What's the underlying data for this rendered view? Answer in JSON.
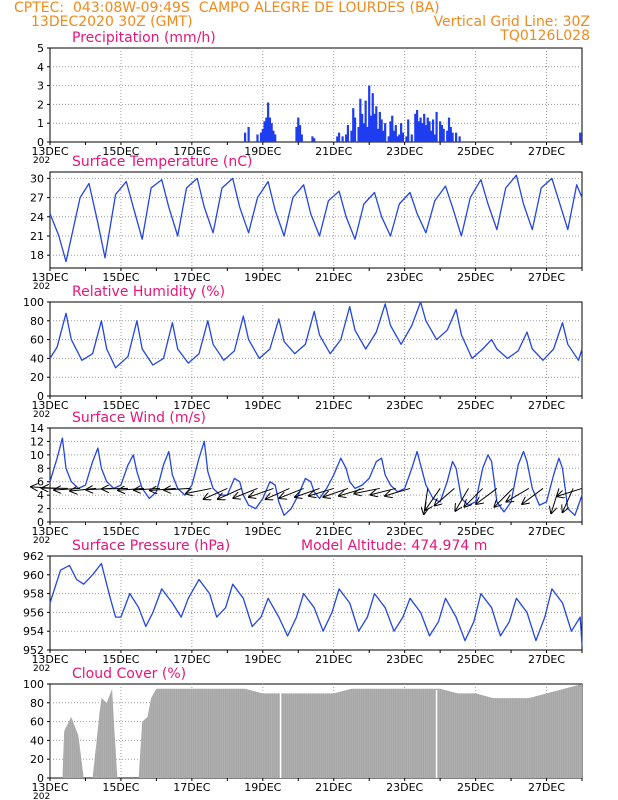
{
  "header": {
    "line1": "CPTEC:  043:08W-09:49S  CAMPO ALEGRE DE LOURDES (BA)",
    "line2_left": "13DEC2020 30Z (GMT)",
    "line2_right": "Vertical Grid Line: 30Z",
    "line3_right": "TQ0126L028"
  },
  "colors": {
    "header": "#f08a1c",
    "title": "#e8157a",
    "series": "#2346e0",
    "bars": "#1e3cf0",
    "cloud": "#a6a6a6",
    "arrows": "#000000",
    "grid": "#9a9a9a"
  },
  "x_axis": {
    "ticks": [
      {
        "day": 13,
        "label": "13DEC"
      },
      {
        "day": 15,
        "label": "15DEC"
      },
      {
        "day": 17,
        "label": "17DEC"
      },
      {
        "day": 19,
        "label": "19DEC"
      },
      {
        "day": 21,
        "label": "21DEC"
      },
      {
        "day": 23,
        "label": "23DEC"
      },
      {
        "day": 25,
        "label": "25DEC"
      },
      {
        "day": 27,
        "label": "27DEC"
      }
    ],
    "range_days": [
      13,
      28
    ],
    "cut_label": "202"
  },
  "chart_data": [
    {
      "id": "precip",
      "type": "bar",
      "title": "Precipitation (mm/h)",
      "ylim": [
        0,
        5
      ],
      "yticks": [
        0,
        1,
        2,
        3,
        4,
        5
      ],
      "x_unit": "day of December 2020",
      "x": [
        18.5,
        18.6,
        18.85,
        18.95,
        19.0,
        19.05,
        19.1,
        19.15,
        19.2,
        19.25,
        19.3,
        19.35,
        19.95,
        20.0,
        20.05,
        20.1,
        20.4,
        20.45,
        21.1,
        21.15,
        21.25,
        21.35,
        21.4,
        21.5,
        21.55,
        21.6,
        21.7,
        21.75,
        21.8,
        21.85,
        21.9,
        21.95,
        22.0,
        22.05,
        22.1,
        22.15,
        22.2,
        22.25,
        22.3,
        22.35,
        22.4,
        22.45,
        22.55,
        22.6,
        22.65,
        22.7,
        22.75,
        22.8,
        22.85,
        22.9,
        22.95,
        23.05,
        23.1,
        23.2,
        23.3,
        23.35,
        23.4,
        23.45,
        23.5,
        23.55,
        23.6,
        23.65,
        23.7,
        23.75,
        23.8,
        23.85,
        23.9,
        24.0,
        24.05,
        24.1,
        24.2,
        24.25,
        24.3,
        24.35,
        24.45,
        24.55,
        27.95
      ],
      "values": [
        0.5,
        0.8,
        0.4,
        0.5,
        0.7,
        1.1,
        1.3,
        2.1,
        1.3,
        1.0,
        0.6,
        0.4,
        0.8,
        1.3,
        0.9,
        0.4,
        0.3,
        0.2,
        0.3,
        0.5,
        0.3,
        0.4,
        0.9,
        0.6,
        1.8,
        1.3,
        0.8,
        2.3,
        1.5,
        1.0,
        2.2,
        0.8,
        3.0,
        1.4,
        2.6,
        1.5,
        1.9,
        0.7,
        1.6,
        1.2,
        0.6,
        1.0,
        0.3,
        1.1,
        1.4,
        0.6,
        0.9,
        0.3,
        0.4,
        1.0,
        0.5,
        0.3,
        1.2,
        0.4,
        1.5,
        1.7,
        1.1,
        1.3,
        1.0,
        1.5,
        0.9,
        1.3,
        1.1,
        0.6,
        1.2,
        0.4,
        1.6,
        1.1,
        0.9,
        0.7,
        0.6,
        1.3,
        0.8,
        0.5,
        0.5,
        0.3,
        0.5
      ]
    },
    {
      "id": "temp",
      "type": "line",
      "title": "Surface Temperature (nC)",
      "ylim": [
        16,
        31
      ],
      "yticks": [
        18,
        21,
        24,
        27,
        30
      ],
      "series": [
        {
          "x": [
            13.0,
            13.25,
            13.45,
            13.85,
            14.1,
            14.35,
            14.55,
            14.85,
            15.15,
            15.35,
            15.6,
            15.85,
            16.15,
            16.35,
            16.6,
            16.85,
            17.15,
            17.35,
            17.6,
            17.85,
            18.15,
            18.35,
            18.6,
            18.85,
            19.15,
            19.35,
            19.6,
            19.85,
            20.15,
            20.35,
            20.6,
            20.85,
            21.15,
            21.35,
            21.6,
            21.85,
            22.15,
            22.35,
            22.6,
            22.85,
            23.15,
            23.35,
            23.6,
            23.85,
            24.15,
            24.35,
            24.6,
            24.85,
            25.15,
            25.35,
            25.6,
            25.85,
            26.15,
            26.35,
            26.6,
            26.85,
            27.15,
            27.35,
            27.6,
            27.85,
            28.0
          ],
          "y": [
            24.5,
            21.0,
            17.0,
            27.0,
            29.2,
            23.0,
            17.6,
            27.5,
            29.5,
            25.5,
            20.5,
            28.5,
            29.8,
            25.5,
            21.0,
            28.5,
            30.0,
            25.5,
            21.5,
            28.5,
            30.0,
            25.5,
            21.5,
            27.0,
            29.5,
            25.0,
            21.0,
            27.0,
            29.0,
            24.5,
            21.0,
            26.5,
            28.0,
            24.0,
            20.5,
            26.0,
            27.8,
            24.0,
            21.0,
            26.0,
            27.8,
            24.5,
            21.5,
            26.5,
            28.8,
            25.5,
            21.0,
            27.0,
            29.8,
            26.0,
            22.0,
            28.5,
            30.5,
            26.0,
            22.0,
            28.5,
            30.0,
            26.5,
            22.0,
            29.0,
            27.0
          ]
        }
      ]
    },
    {
      "id": "rh",
      "type": "line",
      "title": "Relative Humidity (%)",
      "ylim": [
        0,
        100
      ],
      "yticks": [
        0,
        20,
        40,
        60,
        80,
        100
      ],
      "series": [
        {
          "x": [
            13.0,
            13.2,
            13.45,
            13.6,
            13.9,
            14.2,
            14.45,
            14.6,
            14.85,
            15.2,
            15.45,
            15.6,
            15.9,
            16.2,
            16.45,
            16.6,
            16.9,
            17.2,
            17.45,
            17.6,
            17.9,
            18.2,
            18.45,
            18.6,
            18.9,
            19.2,
            19.45,
            19.6,
            19.9,
            20.2,
            20.45,
            20.6,
            20.9,
            21.2,
            21.45,
            21.6,
            21.9,
            22.2,
            22.45,
            22.6,
            22.9,
            23.2,
            23.45,
            23.6,
            23.9,
            24.2,
            24.45,
            24.6,
            24.9,
            25.2,
            25.45,
            25.6,
            25.9,
            26.2,
            26.45,
            26.6,
            26.9,
            27.2,
            27.45,
            27.6,
            27.9,
            28.0
          ],
          "y": [
            40,
            52,
            88,
            60,
            38,
            45,
            80,
            50,
            30,
            42,
            80,
            50,
            33,
            40,
            78,
            50,
            35,
            45,
            80,
            55,
            38,
            48,
            85,
            60,
            40,
            50,
            82,
            58,
            45,
            55,
            90,
            65,
            45,
            60,
            95,
            70,
            50,
            68,
            98,
            75,
            55,
            75,
            100,
            80,
            60,
            70,
            92,
            65,
            40,
            50,
            60,
            50,
            40,
            48,
            68,
            50,
            38,
            50,
            78,
            55,
            38,
            50
          ]
        }
      ]
    },
    {
      "id": "wind",
      "type": "line",
      "title": "Surface Wind (m/s)",
      "ylim": [
        0,
        14
      ],
      "yticks": [
        0,
        2,
        4,
        6,
        8,
        10,
        12,
        14
      ],
      "series": [
        {
          "x": [
            13.0,
            13.2,
            13.35,
            13.45,
            13.6,
            13.8,
            14.0,
            14.2,
            14.35,
            14.45,
            14.6,
            14.8,
            15.0,
            15.2,
            15.35,
            15.45,
            15.6,
            15.8,
            16.0,
            16.2,
            16.35,
            16.45,
            16.6,
            16.8,
            17.0,
            17.2,
            17.35,
            17.45,
            17.6,
            17.8,
            18.0,
            18.2,
            18.35,
            18.45,
            18.6,
            18.8,
            19.0,
            19.2,
            19.35,
            19.45,
            19.6,
            19.8,
            20.0,
            20.2,
            20.35,
            20.45,
            20.6,
            20.8,
            21.0,
            21.2,
            21.35,
            21.45,
            21.6,
            21.8,
            22.0,
            22.2,
            22.35,
            22.45,
            22.6,
            22.8,
            23.0,
            23.2,
            23.35,
            23.45,
            23.6,
            23.8,
            24.0,
            24.2,
            24.35,
            24.45,
            24.6,
            24.8,
            25.0,
            25.2,
            25.35,
            25.45,
            25.6,
            25.8,
            26.0,
            26.2,
            26.35,
            26.45,
            26.6,
            26.8,
            27.0,
            27.2,
            27.35,
            27.45,
            27.6,
            27.8,
            28.0
          ],
          "y": [
            6.0,
            9.5,
            12.5,
            8.0,
            6.0,
            5.0,
            5.5,
            9.0,
            11.0,
            8.0,
            6.0,
            5.0,
            5.5,
            8.5,
            10.0,
            7.5,
            5.0,
            3.5,
            4.5,
            8.5,
            10.5,
            7.0,
            5.0,
            4.0,
            5.5,
            9.5,
            12.0,
            7.5,
            5.0,
            4.0,
            4.0,
            6.5,
            6.0,
            4.0,
            2.5,
            2.0,
            3.5,
            6.0,
            5.5,
            3.0,
            1.0,
            2.0,
            4.0,
            6.5,
            6.0,
            4.5,
            3.5,
            5.0,
            7.0,
            9.5,
            8.0,
            6.0,
            5.0,
            5.5,
            6.5,
            9.0,
            9.5,
            7.0,
            5.5,
            4.5,
            5.0,
            8.0,
            10.5,
            8.5,
            5.5,
            3.5,
            3.0,
            6.0,
            9.0,
            8.0,
            3.5,
            2.5,
            3.0,
            8.0,
            10.0,
            9.0,
            3.0,
            1.5,
            3.0,
            8.5,
            10.5,
            9.0,
            5.0,
            2.5,
            3.0,
            7.0,
            9.5,
            8.0,
            2.0,
            1.0,
            4.0
          ]
        }
      ],
      "arrows": [
        {
          "x": 13.2,
          "dx": -1.0,
          "dy": 0.06
        },
        {
          "x": 13.5,
          "dx": -1.0,
          "dy": 0.01
        },
        {
          "x": 13.85,
          "dx": -1.0,
          "dy": -0.06
        },
        {
          "x": 14.3,
          "dx": -1.0,
          "dy": -0.1
        },
        {
          "x": 14.75,
          "dx": -1.0,
          "dy": -0.05
        },
        {
          "x": 15.2,
          "dx": -1.0,
          "dy": -0.02
        },
        {
          "x": 15.65,
          "dx": -1.0,
          "dy": -0.07
        },
        {
          "x": 16.1,
          "dx": -1.0,
          "dy": -0.06
        },
        {
          "x": 16.55,
          "dx": -1.0,
          "dy": -0.08
        },
        {
          "x": 16.95,
          "dx": -1.0,
          "dy": -0.06
        },
        {
          "x": 17.55,
          "dx": -1.0,
          "dy": -0.2
        },
        {
          "x": 18.0,
          "dx": -1.0,
          "dy": -0.45
        },
        {
          "x": 18.4,
          "dx": -1.0,
          "dy": -0.45
        },
        {
          "x": 18.85,
          "dx": -1.0,
          "dy": -0.4
        },
        {
          "x": 19.3,
          "dx": -1.0,
          "dy": -0.35
        },
        {
          "x": 19.75,
          "dx": -1.0,
          "dy": -0.45
        },
        {
          "x": 20.15,
          "dx": -1.0,
          "dy": -0.4
        },
        {
          "x": 20.6,
          "dx": -1.0,
          "dy": -0.35
        },
        {
          "x": 21.0,
          "dx": -1.0,
          "dy": -0.3
        },
        {
          "x": 21.4,
          "dx": -1.0,
          "dy": -0.35
        },
        {
          "x": 21.85,
          "dx": -1.0,
          "dy": -0.3
        },
        {
          "x": 22.3,
          "dx": -1.0,
          "dy": -0.2
        },
        {
          "x": 22.75,
          "dx": -1.0,
          "dy": -0.25
        },
        {
          "x": 23.15,
          "dx": -1.0,
          "dy": -0.3
        },
        {
          "x": 23.65,
          "dx": -0.15,
          "dy": -1.0
        },
        {
          "x": 24.0,
          "dx": -0.55,
          "dy": -0.8
        },
        {
          "x": 24.4,
          "dx": -0.75,
          "dy": -0.65
        },
        {
          "x": 24.8,
          "dx": -0.5,
          "dy": -0.85
        },
        {
          "x": 25.2,
          "dx": -0.7,
          "dy": -0.7
        },
        {
          "x": 25.6,
          "dx": -0.8,
          "dy": -0.6
        },
        {
          "x": 26.05,
          "dx": -0.7,
          "dy": -0.7
        },
        {
          "x": 26.5,
          "dx": -0.85,
          "dy": -0.5
        },
        {
          "x": 26.9,
          "dx": -0.8,
          "dy": -0.6
        },
        {
          "x": 27.35,
          "dx": -0.3,
          "dy": -0.95
        },
        {
          "x": 27.75,
          "dx": -0.4,
          "dy": -0.9
        },
        {
          "x": 28.0,
          "dx": -0.95,
          "dy": -0.3
        }
      ]
    },
    {
      "id": "pres",
      "type": "line",
      "title": "Surface Pressure (hPa)",
      "subtitle": "Model Altitude: 474.974 m",
      "ylim": [
        952,
        962
      ],
      "yticks": [
        952,
        954,
        956,
        958,
        960,
        962
      ],
      "series": [
        {
          "x": [
            13.0,
            13.3,
            13.55,
            13.75,
            13.95,
            14.2,
            14.45,
            14.7,
            14.85,
            15.0,
            15.25,
            15.5,
            15.7,
            15.9,
            16.15,
            16.45,
            16.7,
            16.9,
            17.2,
            17.5,
            17.7,
            17.95,
            18.15,
            18.45,
            18.7,
            18.95,
            19.15,
            19.45,
            19.7,
            19.95,
            20.15,
            20.45,
            20.7,
            20.95,
            21.15,
            21.45,
            21.7,
            21.95,
            22.15,
            22.45,
            22.7,
            22.95,
            23.15,
            23.45,
            23.7,
            23.95,
            24.15,
            24.45,
            24.7,
            24.95,
            25.15,
            25.45,
            25.7,
            25.95,
            26.15,
            26.45,
            26.7,
            26.95,
            27.15,
            27.45,
            27.7,
            27.95,
            28.0
          ],
          "y": [
            957.0,
            960.5,
            961.0,
            959.5,
            959.0,
            960.0,
            961.2,
            957.5,
            955.5,
            955.5,
            958.0,
            956.5,
            954.5,
            956.0,
            958.5,
            957.0,
            955.5,
            957.5,
            959.5,
            958.0,
            955.5,
            956.5,
            959.0,
            957.5,
            954.5,
            955.5,
            957.5,
            955.5,
            953.5,
            955.5,
            958.0,
            956.5,
            954.0,
            956.0,
            958.5,
            957.0,
            954.0,
            955.5,
            958.0,
            956.5,
            954.0,
            955.5,
            957.5,
            956.0,
            953.5,
            955.0,
            957.5,
            955.5,
            953.0,
            955.0,
            958.0,
            956.5,
            953.5,
            955.0,
            957.5,
            956.0,
            953.0,
            955.5,
            958.5,
            957.0,
            954.0,
            955.5,
            952.5
          ]
        }
      ]
    },
    {
      "id": "cloud",
      "type": "area",
      "title": "Cloud Cover (%)",
      "ylim": [
        0,
        100
      ],
      "yticks": [
        0,
        20,
        40,
        60,
        80,
        100
      ],
      "series": [
        {
          "x": [
            13.0,
            13.35,
            13.4,
            13.6,
            13.8,
            13.95,
            14.0,
            14.2,
            14.4,
            14.45,
            14.6,
            14.75,
            14.8,
            14.9,
            15.0,
            15.5,
            15.6,
            15.75,
            15.85,
            16.0,
            16.5,
            17.0,
            17.5,
            18.0,
            18.5,
            19.0,
            19.5,
            20.0,
            20.5,
            21.0,
            21.5,
            22.0,
            22.5,
            23.0,
            23.5,
            24.0,
            24.5,
            25.0,
            25.5,
            26.0,
            26.5,
            27.0,
            27.5,
            28.0
          ],
          "y": [
            0,
            0,
            50,
            65,
            45,
            0,
            0,
            0,
            70,
            85,
            80,
            95,
            60,
            0,
            0,
            0,
            60,
            65,
            85,
            95,
            95,
            95,
            95,
            95,
            95,
            90,
            90,
            90,
            90,
            90,
            95,
            95,
            95,
            95,
            95,
            95,
            90,
            90,
            85,
            85,
            85,
            90,
            95,
            100
          ]
        }
      ],
      "gaps": [
        19.5,
        23.9
      ]
    }
  ]
}
